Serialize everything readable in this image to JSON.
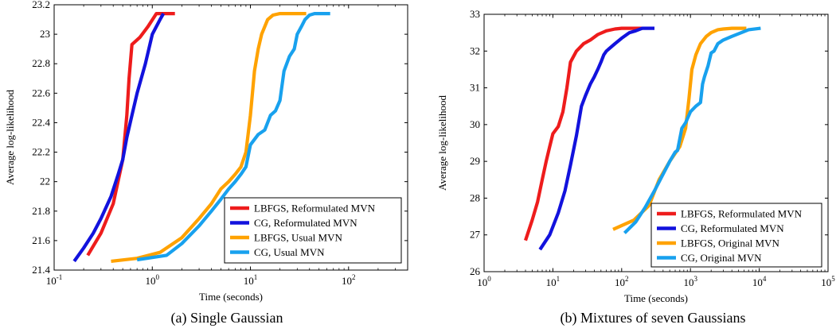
{
  "figure": {
    "captions": [
      "(a)  Single Gaussian",
      "(b)  Mixtures of seven Gaussians"
    ]
  },
  "colors": {
    "red": "#ee1c1c",
    "blue": "#1212dd",
    "orange": "#ffa200",
    "lightblue": "#18a1ee"
  },
  "chart_data": [
    {
      "type": "line",
      "title": "",
      "xlabel": "Time (seconds)",
      "ylabel": "Average log-likelihood",
      "xscale": "log",
      "xlim": [
        0.1,
        400
      ],
      "ylim": [
        21.4,
        23.2
      ],
      "xtick_labels": [
        "10^-1",
        "10^0",
        "10^1",
        "10^2"
      ],
      "xticks": [
        0.1,
        1,
        10,
        100
      ],
      "yticks": [
        21.4,
        21.6,
        21.8,
        22,
        22.2,
        22.4,
        22.6,
        22.8,
        23,
        23.2
      ],
      "ytick_labels": [
        "21.4",
        "21.6",
        "21.8",
        "22",
        "22.2",
        "22.4",
        "22.6",
        "22.8",
        "23",
        "23.2"
      ],
      "grid": false,
      "legend_position": "bottom-right",
      "series": [
        {
          "name": "LBFGS, Reformulated MVN",
          "color": "#ee1c1c",
          "x": [
            0.22,
            0.3,
            0.4,
            0.5,
            0.55,
            0.58,
            0.62,
            0.75,
            0.9,
            1.1,
            1.3,
            1.7
          ],
          "y": [
            21.5,
            21.65,
            21.85,
            22.15,
            22.45,
            22.7,
            22.93,
            22.98,
            23.05,
            23.14,
            23.14,
            23.14
          ]
        },
        {
          "name": "CG, Reformulated MVN",
          "color": "#1212dd",
          "x": [
            0.16,
            0.2,
            0.25,
            0.3,
            0.38,
            0.45,
            0.5,
            0.55,
            0.62,
            0.7,
            0.85,
            1.0,
            1.2,
            1.3
          ],
          "y": [
            21.46,
            21.55,
            21.65,
            21.75,
            21.9,
            22.05,
            22.15,
            22.3,
            22.45,
            22.6,
            22.8,
            23.0,
            23.1,
            23.14
          ]
        },
        {
          "name": "LBFGS, Usual MVN",
          "color": "#ffa200",
          "x": [
            0.38,
            0.7,
            1.2,
            2.0,
            3.0,
            4.0,
            5.0,
            6.0,
            7.0,
            8.0,
            9.0,
            10.0,
            11.0,
            12.0,
            13.0,
            15.0,
            17.0,
            20.0,
            25.0,
            37.0
          ],
          "y": [
            21.46,
            21.48,
            21.52,
            21.62,
            21.75,
            21.85,
            21.95,
            22.0,
            22.05,
            22.1,
            22.2,
            22.45,
            22.75,
            22.9,
            23.0,
            23.1,
            23.13,
            23.14,
            23.14,
            23.14
          ]
        },
        {
          "name": "CG, Usual MVN",
          "color": "#18a1ee",
          "x": [
            0.7,
            1.4,
            2.0,
            3.0,
            4.0,
            5.0,
            6.0,
            7.0,
            8.0,
            9.0,
            10.0,
            12.0,
            14.0,
            16.0,
            18.0,
            20.0,
            22.0,
            25.0,
            28.0,
            30.0,
            33.0,
            36.0,
            40.0,
            45.0,
            50.0,
            65.0
          ],
          "y": [
            21.47,
            21.5,
            21.58,
            21.7,
            21.8,
            21.88,
            21.95,
            22.0,
            22.05,
            22.1,
            22.25,
            22.32,
            22.35,
            22.45,
            22.48,
            22.55,
            22.75,
            22.85,
            22.9,
            23.0,
            23.05,
            23.1,
            23.13,
            23.14,
            23.14,
            23.14
          ]
        }
      ]
    },
    {
      "type": "line",
      "title": "",
      "xlabel": "Time (seconds)",
      "ylabel": "Average log-likelihood",
      "xscale": "log",
      "xlim": [
        1,
        100000
      ],
      "ylim": [
        26,
        33
      ],
      "xtick_labels": [
        "10^0",
        "10^1",
        "10^2",
        "10^3",
        "10^4",
        "10^5"
      ],
      "xticks": [
        1,
        10,
        100,
        1000,
        10000,
        100000
      ],
      "yticks": [
        26,
        27,
        28,
        29,
        30,
        31,
        32,
        33
      ],
      "ytick_labels": [
        "26",
        "27",
        "28",
        "29",
        "30",
        "31",
        "32",
        "33"
      ],
      "grid": false,
      "legend_position": "bottom-right",
      "series": [
        {
          "name": "LBFGS, Reformulated MVN",
          "color": "#ee1c1c",
          "x": [
            4,
            5,
            6,
            7,
            8,
            9,
            10,
            12,
            14,
            16,
            18,
            22,
            28,
            35,
            45,
            60,
            80,
            100,
            150,
            200
          ],
          "y": [
            26.85,
            27.4,
            27.9,
            28.5,
            29.0,
            29.4,
            29.75,
            29.95,
            30.35,
            31.0,
            31.7,
            32.0,
            32.2,
            32.3,
            32.45,
            32.55,
            32.6,
            32.62,
            32.62,
            32.62
          ]
        },
        {
          "name": "CG, Reformulated MVN",
          "color": "#1212dd",
          "x": [
            6.5,
            9,
            12,
            15,
            18,
            22,
            26,
            30,
            35,
            40,
            45,
            50,
            55,
            60,
            80,
            100,
            130,
            160,
            200,
            300
          ],
          "y": [
            26.6,
            27.0,
            27.6,
            28.2,
            28.9,
            29.7,
            30.5,
            30.8,
            31.1,
            31.3,
            31.5,
            31.7,
            31.9,
            32.0,
            32.2,
            32.35,
            32.5,
            32.55,
            32.62,
            32.62
          ]
        },
        {
          "name": "LBFGS, Original MVN",
          "color": "#ffa200",
          "x": [
            75,
            150,
            250,
            350,
            500,
            700,
            850,
            950,
            1050,
            1200,
            1400,
            1700,
            2000,
            2500,
            3000,
            4000,
            5000,
            6500
          ],
          "y": [
            27.15,
            27.4,
            27.8,
            28.5,
            29.0,
            29.4,
            29.9,
            30.7,
            31.5,
            31.9,
            32.2,
            32.4,
            32.5,
            32.58,
            32.6,
            32.62,
            32.62,
            32.62
          ]
        },
        {
          "name": "CG, Original MVN",
          "color": "#18a1ee",
          "x": [
            110,
            160,
            220,
            300,
            400,
            500,
            600,
            650,
            750,
            850,
            1000,
            1200,
            1400,
            1500,
            1600,
            1800,
            2000,
            2200,
            2500,
            3000,
            4000,
            5500,
            7000,
            10500
          ],
          "y": [
            27.05,
            27.35,
            27.75,
            28.2,
            28.65,
            29.0,
            29.25,
            29.3,
            29.9,
            30.05,
            30.35,
            30.5,
            30.6,
            31.1,
            31.3,
            31.6,
            31.95,
            32.0,
            32.2,
            32.3,
            32.4,
            32.5,
            32.58,
            32.62
          ]
        }
      ]
    }
  ]
}
